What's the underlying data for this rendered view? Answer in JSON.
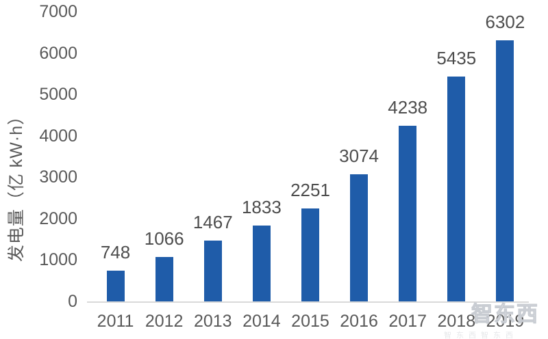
{
  "chart_data": {
    "type": "bar",
    "categories": [
      "2011",
      "2012",
      "2013",
      "2014",
      "2015",
      "2016",
      "2017",
      "2018",
      "2019"
    ],
    "values": [
      748,
      1066,
      1467,
      1833,
      2251,
      3074,
      4238,
      5435,
      6302
    ],
    "title": "",
    "xlabel": "",
    "ylabel": "发电量（亿 kW·h）",
    "ylim": [
      0,
      7000
    ],
    "ytick_step": 1000,
    "yticks": [
      0,
      1000,
      2000,
      3000,
      4000,
      5000,
      6000,
      7000
    ],
    "grid": false,
    "legend": "none",
    "data_labels": "outside-end",
    "bar_color": "#1F5CA9",
    "label_color": "#4D4D4D",
    "axis_text_color": "#595959",
    "baseline_color": "#D9D9D9"
  },
  "watermark": {
    "text": "智东西",
    "row_text": "智东西智东西"
  }
}
